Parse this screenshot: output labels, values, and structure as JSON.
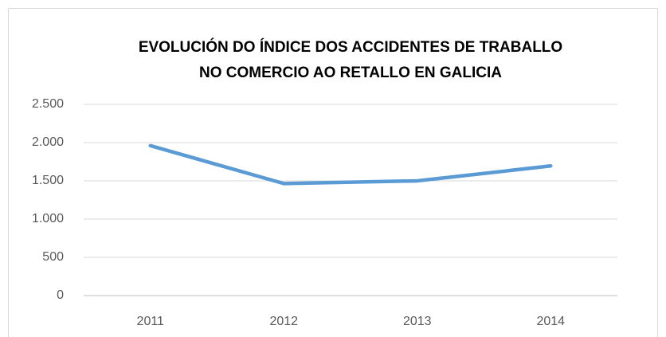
{
  "chart_data": {
    "type": "line",
    "title": [
      "EVOLUCIÓN DO ÍNDICE DOS ACCIDENTES DE TRABALLO",
      "NO COMERCIO AO RETALLO EN GALICIA"
    ],
    "categories": [
      "2011",
      "2012",
      "2013",
      "2014"
    ],
    "series": [
      {
        "name": null,
        "color": "#5b9bd5",
        "values": [
          1960,
          1465,
          1500,
          1695
        ]
      }
    ],
    "ylim": [
      0,
      2500
    ],
    "yticks": [
      0,
      500,
      {
        "value": 1000,
        "label": "1.000"
      },
      {
        "value": 1500,
        "label": "1.500"
      },
      {
        "value": 2000,
        "label": "2.000"
      },
      {
        "value": 2500,
        "label": "2.500"
      }
    ],
    "grid": true
  }
}
